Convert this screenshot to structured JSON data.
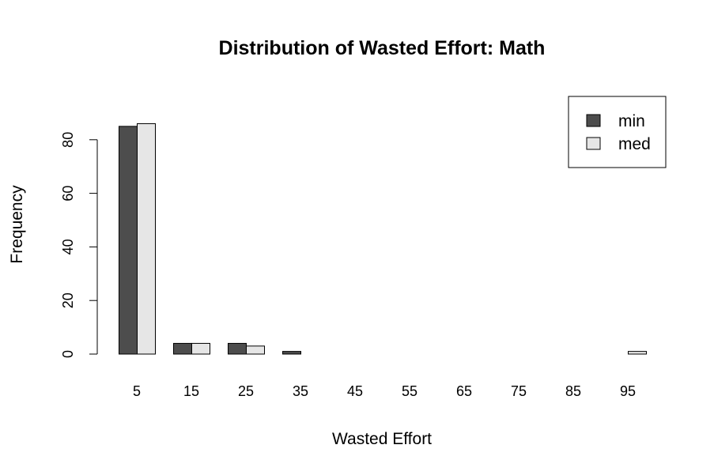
{
  "chart_data": {
    "type": "bar",
    "title": "Distribution of Wasted Effort: Math",
    "xlabel": "Wasted Effort",
    "ylabel": "Frequency",
    "categories": [
      "5",
      "15",
      "25",
      "35",
      "45",
      "55",
      "65",
      "75",
      "85",
      "95"
    ],
    "series": [
      {
        "name": "min",
        "color": "#4d4d4d",
        "values": [
          85,
          4,
          4,
          1,
          0,
          0,
          0,
          0,
          0,
          0
        ]
      },
      {
        "name": "med",
        "color": "#e6e6e6",
        "values": [
          86,
          4,
          3,
          0,
          0,
          0,
          0,
          0,
          0,
          1
        ]
      }
    ],
    "yticks": [
      0,
      20,
      40,
      60,
      80
    ],
    "ylim": [
      0,
      86
    ],
    "grid": false,
    "legend_position": "top-right"
  }
}
